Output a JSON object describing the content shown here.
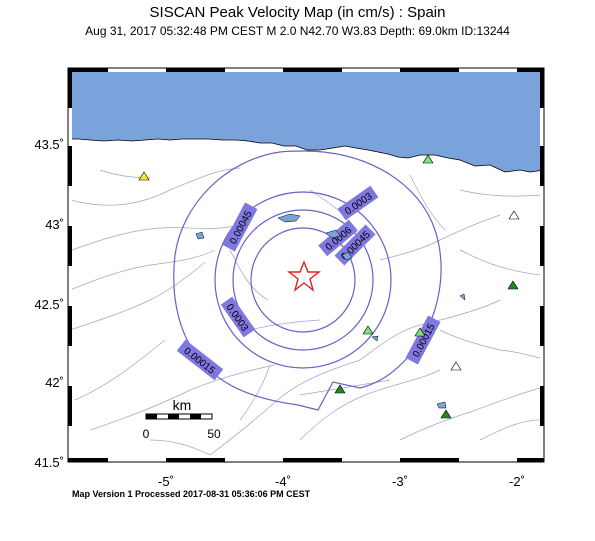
{
  "header": {
    "title": "SISCAN Peak Velocity Map (in cm/s) : Spain",
    "subtitle": "Aug 31, 2017 05:32:48 PM CEST   M 2.0   N42.70 W3.83   Depth: 69.0km   ID:13244"
  },
  "footer": "Map Version 1 Processed 2017-08-31 05:36:06 PM CEST",
  "axes": {
    "lat_labels": [
      "43.5˚",
      "43˚",
      "42.5˚",
      "42˚",
      "41.5˚"
    ],
    "lon_labels": [
      "-5˚",
      "-4˚",
      "-3˚",
      "-2˚"
    ]
  },
  "scale_bar": {
    "unit": "km",
    "start": "0",
    "end": "50"
  },
  "contours": [
    "0.00045",
    "0.0003",
    "0.00015",
    "0.0006",
    "0.00045",
    "0.0003",
    "0.00015"
  ],
  "colors": {
    "sea": "#7aa3dc",
    "contour": "#6a5fc8",
    "label_bg": "#7e78e0",
    "epicenter": "#e02020",
    "rivers": "#9aa7c6",
    "station_yellow": "#f2ee2a",
    "station_light_green": "#7fe07a",
    "station_dark_green": "#1f8a1f"
  },
  "markers": {
    "epicenter": "star-icon",
    "stations": [
      "triangle-icon"
    ]
  }
}
